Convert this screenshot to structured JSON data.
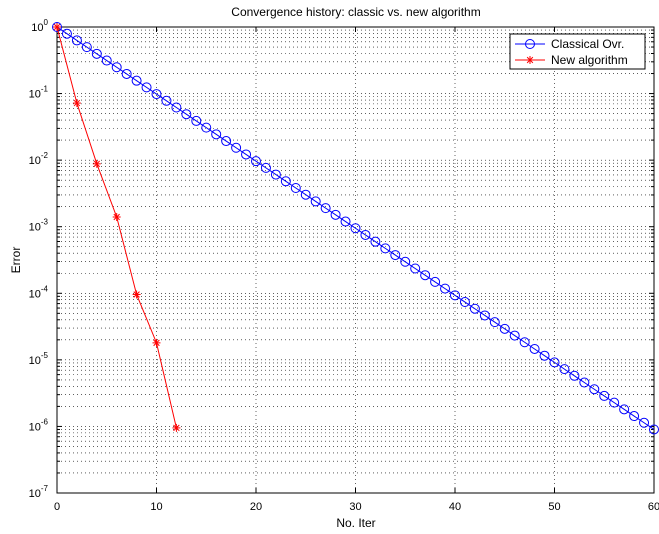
{
  "chart_data": {
    "type": "line",
    "title": "Convergence history: classic vs. new algorithm",
    "xlabel": "No. Iter",
    "ylabel": "Error",
    "xlim": [
      0,
      60
    ],
    "ylim": [
      1e-07,
      1
    ],
    "yscale": "log",
    "grid": true,
    "legend_position": "top-right",
    "x_ticks": [
      0,
      10,
      20,
      30,
      40,
      50,
      60
    ],
    "x_tick_labels": [
      "0",
      "10",
      "20",
      "30",
      "40",
      "50",
      "60"
    ],
    "y_ticks": [
      {
        "base": "10",
        "exp": "0"
      },
      {
        "base": "10",
        "exp": "-1"
      },
      {
        "base": "10",
        "exp": "-2"
      },
      {
        "base": "10",
        "exp": "-3"
      },
      {
        "base": "10",
        "exp": "-4"
      },
      {
        "base": "10",
        "exp": "-5"
      },
      {
        "base": "10",
        "exp": "-6"
      },
      {
        "base": "10",
        "exp": "-7"
      }
    ],
    "series": [
      {
        "name": "Classical Ovr.",
        "color": "#0000ff",
        "marker": "circle",
        "x_start": 0,
        "x_end": 60,
        "y_start": 1,
        "y_end": 9e-07
      },
      {
        "name": "New algorithm",
        "color": "#ff0000",
        "marker": "star",
        "x": [
          0,
          2,
          4,
          6,
          8,
          10,
          12
        ],
        "y": [
          1,
          0.072,
          0.0088,
          0.0014,
          9.6e-05,
          1.8e-05,
          9.5e-07
        ]
      }
    ]
  }
}
